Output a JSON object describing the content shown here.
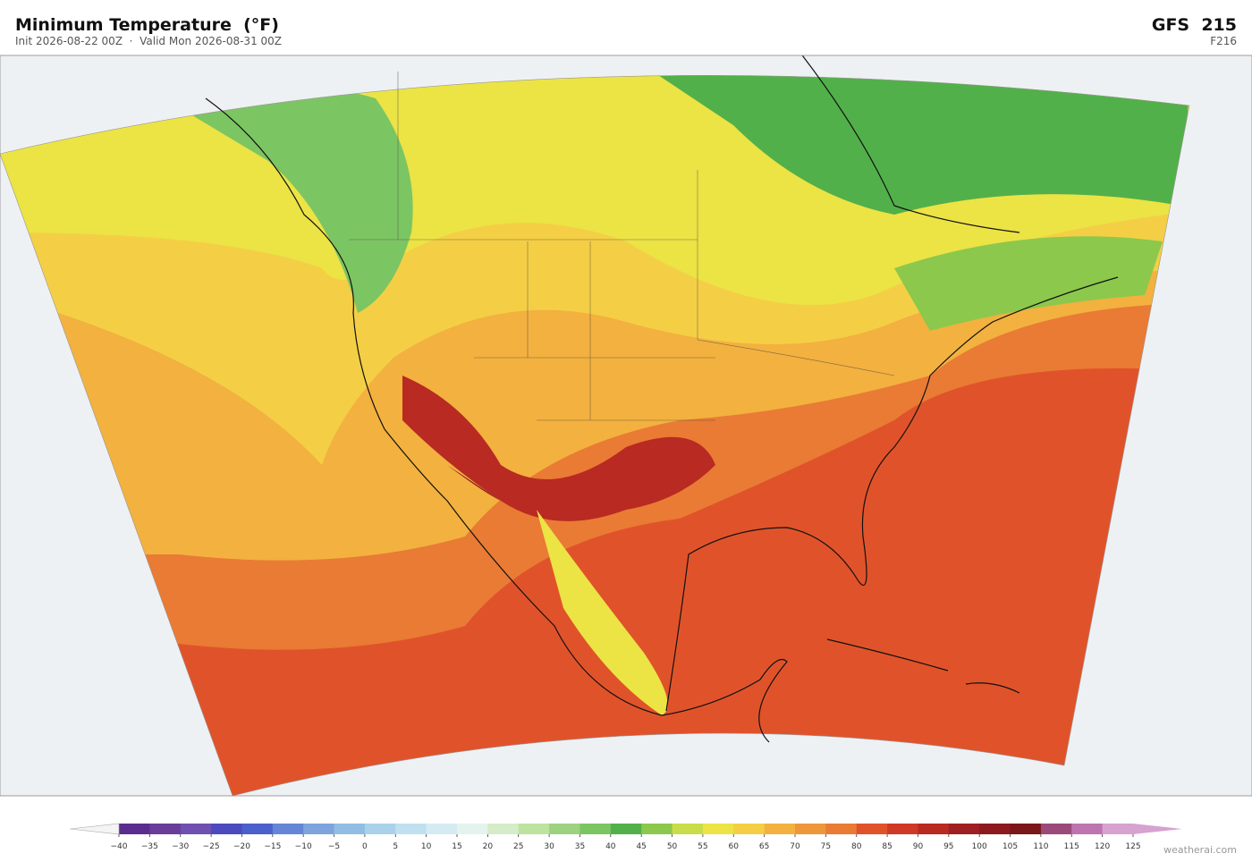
{
  "header": {
    "title": "Minimum Temperature  (°F)",
    "subtitle": "Init 2026-08-22 00Z  ·  Valid Mon 2026-08-31 00Z",
    "model": "GFS  215",
    "forecast_hour": "F216"
  },
  "colorbar": {
    "ticks": [
      {
        "value": -40,
        "label": "−40"
      },
      {
        "value": -35,
        "label": "−35"
      },
      {
        "value": -30,
        "label": "−30"
      },
      {
        "value": -25,
        "label": "−25"
      },
      {
        "value": -20,
        "label": "−20"
      },
      {
        "value": -15,
        "label": "−15"
      },
      {
        "value": -10,
        "label": "−10"
      },
      {
        "value": -5,
        "label": "−5"
      },
      0,
      5,
      10,
      15,
      20,
      25,
      30,
      35,
      40,
      45,
      50,
      55,
      60,
      65,
      70,
      75,
      80,
      85,
      90,
      95,
      100,
      105,
      110,
      115,
      120,
      125
    ],
    "colors": [
      "#5b2d8e",
      "#6a3d9a",
      "#7050b0",
      "#4b4bbf",
      "#4a60cc",
      "#6585d6",
      "#7da4dc",
      "#91bde3",
      "#a9d2ea",
      "#bfe1ef",
      "#d4ecf1",
      "#e4f3ee",
      "#d5ecc8",
      "#bde3a0",
      "#9dd27f",
      "#7cc563",
      "#52b04a",
      "#8cc84b",
      "#c9dc4a",
      "#ece345",
      "#f4cf45",
      "#f3b13f",
      "#ee963a",
      "#e97b34",
      "#e0532a",
      "#cf3a26",
      "#b82a22",
      "#a01f22",
      "#8c1a1e",
      "#7b1619",
      "#9b4a7a",
      "#bd74b0",
      "#d7a2cf"
    ],
    "under_color": "#f4f4f4",
    "over_color": "#d7a2cf"
  },
  "footer": {
    "watermark": "weatherai.com"
  }
}
